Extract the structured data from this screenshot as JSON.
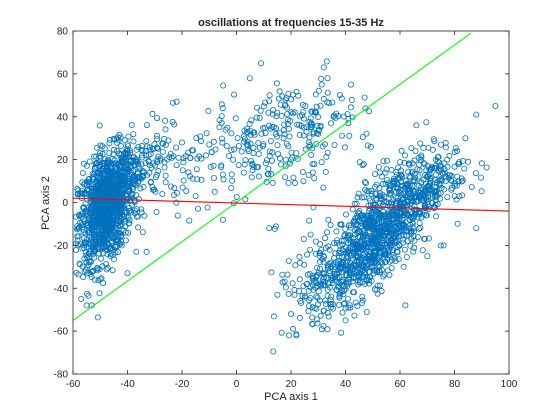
{
  "chart_data": {
    "type": "scatter",
    "title": "oscillations at frequencies 15-35 Hz",
    "xlabel": "PCA axis 1",
    "ylabel": "PCA axis 2",
    "xlim": [
      -60,
      100
    ],
    "ylim": [
      -80,
      80
    ],
    "x_ticks": [
      -60,
      -40,
      -20,
      0,
      20,
      40,
      60,
      80,
      100
    ],
    "y_ticks": [
      -80,
      -60,
      -40,
      -20,
      0,
      20,
      40,
      60,
      80
    ],
    "grid": false,
    "legend": null,
    "marker": "open-circle",
    "colors": {
      "points": "#0072BD",
      "green_line": "#00FF00",
      "red_line": "#FF0000",
      "axes": "#262626",
      "background": "#FFFFFF"
    },
    "lines": [
      {
        "color": "green",
        "x": [
          -60,
          86
        ],
        "y": [
          -55,
          79
        ]
      },
      {
        "color": "red",
        "x": [
          -60,
          100
        ],
        "y": [
          2,
          -4
        ]
      }
    ],
    "clusters": [
      {
        "cx": -48,
        "cy": -2,
        "sx": 5,
        "sy": 13,
        "rho": 0.35,
        "n": 1150
      },
      {
        "cx": -36,
        "cy": 14,
        "sx": 6,
        "sy": 9,
        "rho": 0.3,
        "n": 160
      },
      {
        "cx": 50,
        "cy": -18,
        "sx": 11,
        "sy": 15,
        "rho": 0.72,
        "n": 950
      },
      {
        "cx": 66,
        "cy": 10,
        "sx": 10,
        "sy": 8,
        "rho": 0.4,
        "n": 240
      },
      {
        "cx": 3,
        "cy": 25,
        "sx": 18,
        "sy": 13,
        "rho": 0.25,
        "n": 200
      },
      {
        "cx": 25,
        "cy": 38,
        "sx": 10,
        "sy": 10,
        "rho": 0.1,
        "n": 110
      },
      {
        "cx": 30,
        "cy": -40,
        "sx": 8,
        "sy": 10,
        "rho": 0.2,
        "n": 60
      }
    ],
    "points": [
      [
        -57,
        -45
      ],
      [
        -55,
        -48
      ],
      [
        -52,
        -36
      ],
      [
        -40,
        -33
      ],
      [
        -33,
        -23
      ],
      [
        -22,
        47
      ],
      [
        -20,
        28
      ],
      [
        -10,
        27
      ],
      [
        -8,
        5
      ],
      [
        -5,
        13
      ],
      [
        9,
        65
      ],
      [
        18,
        48
      ],
      [
        32,
        63
      ],
      [
        42,
        55
      ],
      [
        47,
        49
      ],
      [
        66,
        36
      ],
      [
        75,
        27
      ],
      [
        84,
        30
      ],
      [
        88,
        41
      ],
      [
        95,
        45
      ],
      [
        85,
        19
      ],
      [
        88,
        -12
      ],
      [
        76,
        -20
      ],
      [
        70,
        -25
      ],
      [
        62,
        -48
      ],
      [
        40,
        -55
      ],
      [
        22,
        -62
      ],
      [
        20,
        -52
      ],
      [
        15,
        -43
      ],
      [
        27,
        -22
      ],
      [
        20,
        20
      ],
      [
        28,
        14
      ],
      [
        12,
        -12
      ],
      [
        -5,
        -8
      ],
      [
        -15,
        3
      ]
    ]
  }
}
